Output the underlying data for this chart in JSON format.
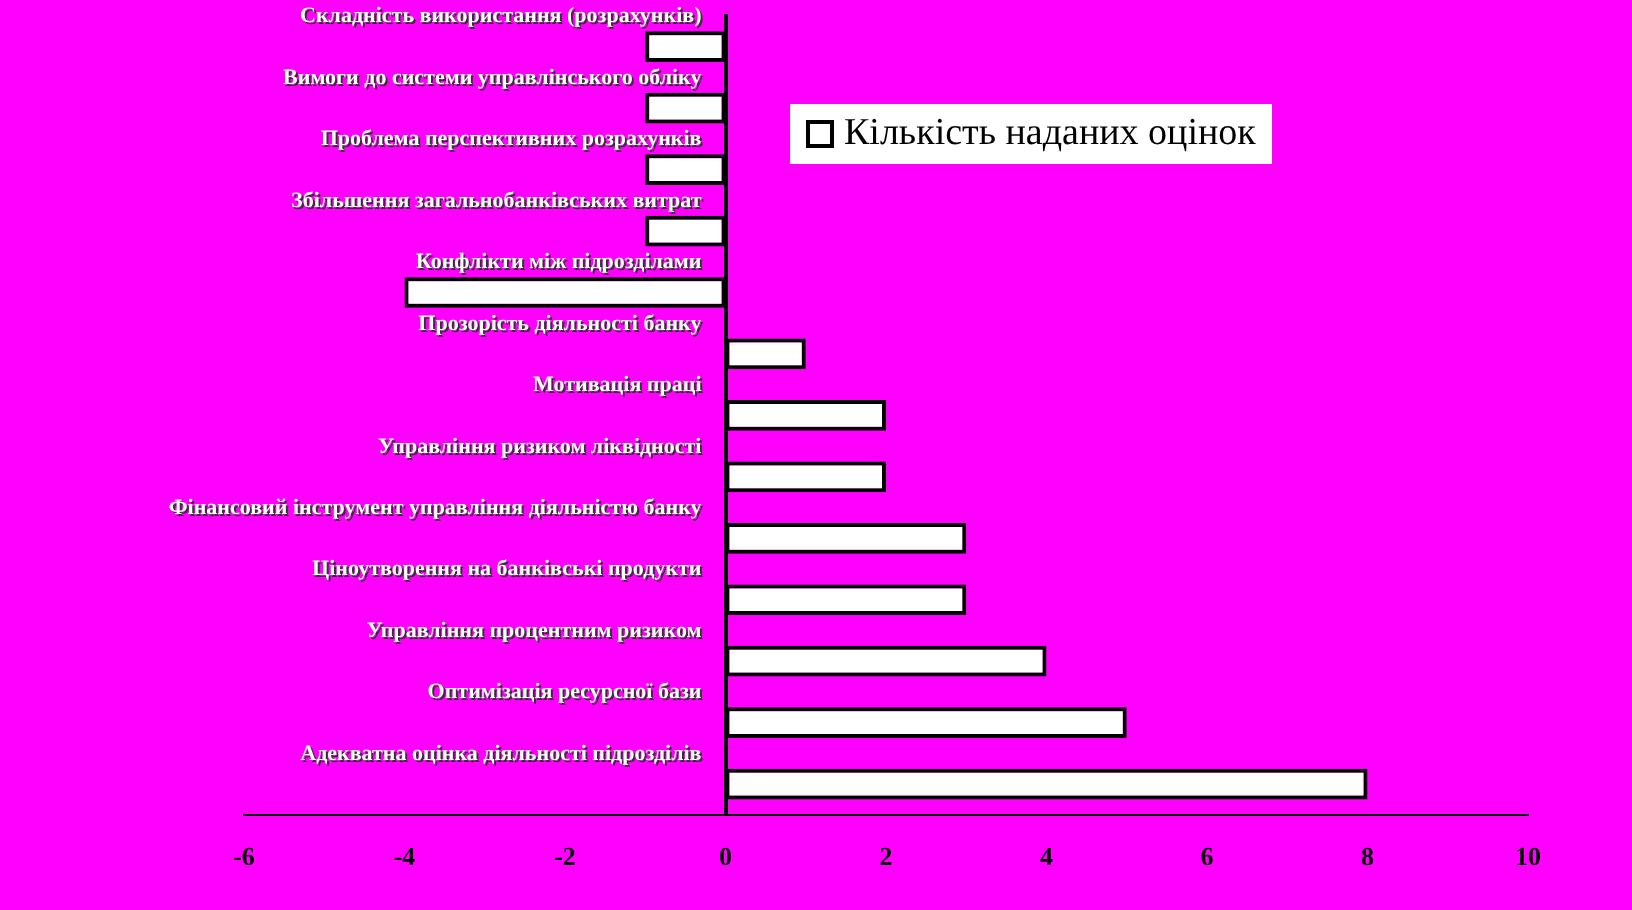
{
  "chart_data": {
    "type": "bar",
    "orientation": "horizontal",
    "categories": [
      "Складність використання (розрахунків)",
      "Вимоги до системи управлінського обліку",
      "Проблема перспективних розрахунків",
      "Збільшення загальнобанківських витрат",
      "Конфлікти між підрозділами",
      "Прозорість діяльності банку",
      "Мотивація праці",
      "Управління ризиком ліквідності",
      "Фінансовий інструмент управління діяльністю банку",
      "Ціноутворення на банківські продукти",
      "Управління процентним ризиком",
      "Оптимізація ресурсної бази",
      "Адекватна оцінка діяльності підрозділів"
    ],
    "series": [
      {
        "name": "Кількість наданих оцінок",
        "color": "#ffffff",
        "values": [
          -1,
          -1,
          -1,
          -1,
          -4,
          1,
          2,
          2,
          3,
          3,
          4,
          5,
          8
        ]
      }
    ],
    "xlim": [
      -6,
      10
    ],
    "xticks": [
      -6,
      -4,
      -2,
      0,
      2,
      4,
      6,
      8,
      10
    ],
    "grid": false,
    "legend": "top right"
  }
}
